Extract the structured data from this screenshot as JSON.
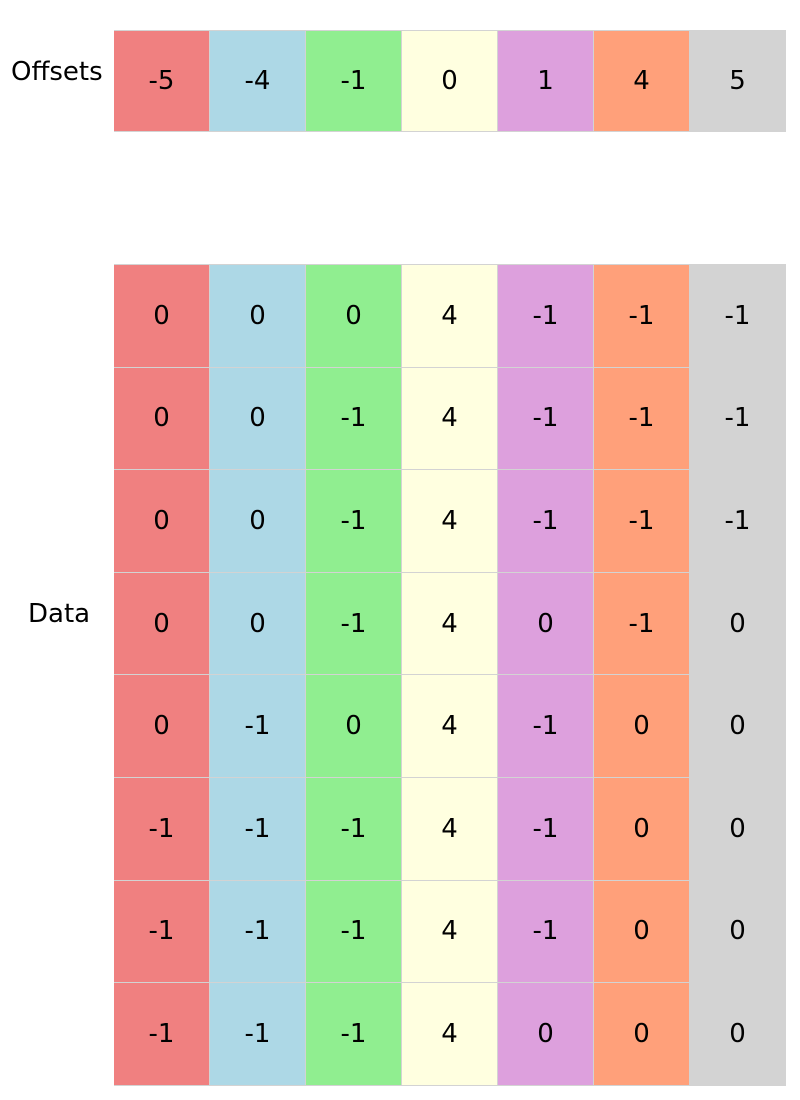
{
  "labels": {
    "offsets": "Offsets",
    "data": "Data"
  },
  "column_colors": [
    "#f08080",
    "#add8e6",
    "#90ee90",
    "#ffffe0",
    "#dda0dd",
    "#ffa07a",
    "#d3d3d3"
  ],
  "offsets": [
    "-5",
    "-4",
    "-1",
    "0",
    "1",
    "4",
    "5"
  ],
  "data": [
    [
      "0",
      "0",
      "0",
      "4",
      "-1",
      "-1",
      "-1"
    ],
    [
      "0",
      "0",
      "-1",
      "4",
      "-1",
      "-1",
      "-1"
    ],
    [
      "0",
      "0",
      "-1",
      "4",
      "-1",
      "-1",
      "-1"
    ],
    [
      "0",
      "0",
      "-1",
      "4",
      "0",
      "-1",
      "0"
    ],
    [
      "0",
      "-1",
      "0",
      "4",
      "-1",
      "0",
      "0"
    ],
    [
      "-1",
      "-1",
      "-1",
      "4",
      "-1",
      "0",
      "0"
    ],
    [
      "-1",
      "-1",
      "-1",
      "4",
      "-1",
      "0",
      "0"
    ],
    [
      "-1",
      "-1",
      "-1",
      "4",
      "0",
      "0",
      "0"
    ]
  ]
}
